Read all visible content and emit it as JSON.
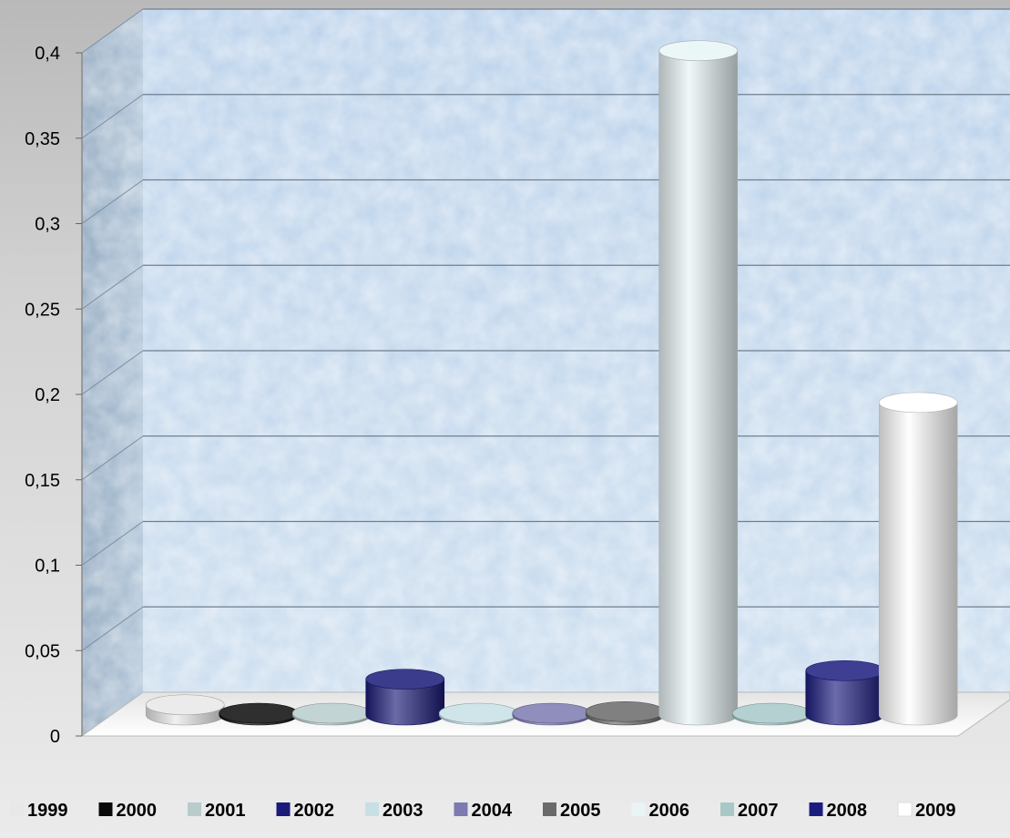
{
  "chart_data": {
    "type": "bar",
    "title": "",
    "xlabel": "",
    "ylabel": "",
    "ylim": [
      0,
      0.4
    ],
    "grid": true,
    "legend_position": "bottom",
    "y_ticks": [
      "0",
      "0,05",
      "0,1",
      "0,15",
      "0,2",
      "0,25",
      "0,3",
      "0,35",
      "0,4"
    ],
    "series": [
      {
        "name": "1999",
        "value": 0.006,
        "color": "#e8e8e8"
      },
      {
        "name": "2000",
        "value": 0.001,
        "color": "#0a0a0a"
      },
      {
        "name": "2001",
        "value": 0.001,
        "color": "#b8cccc"
      },
      {
        "name": "2002",
        "value": 0.021,
        "color": "#1a1a78"
      },
      {
        "name": "2003",
        "value": 0.001,
        "color": "#c6e0e6"
      },
      {
        "name": "2004",
        "value": 0.001,
        "color": "#7c7ab0"
      },
      {
        "name": "2005",
        "value": 0.002,
        "color": "#6a6a6a"
      },
      {
        "name": "2006",
        "value": 0.389,
        "color": "#e8f4f6"
      },
      {
        "name": "2007",
        "value": 0.001,
        "color": "#a8c8c8"
      },
      {
        "name": "2008",
        "value": 0.026,
        "color": "#1c1c80"
      },
      {
        "name": "2009",
        "value": 0.183,
        "color": "#ffffff"
      }
    ]
  }
}
